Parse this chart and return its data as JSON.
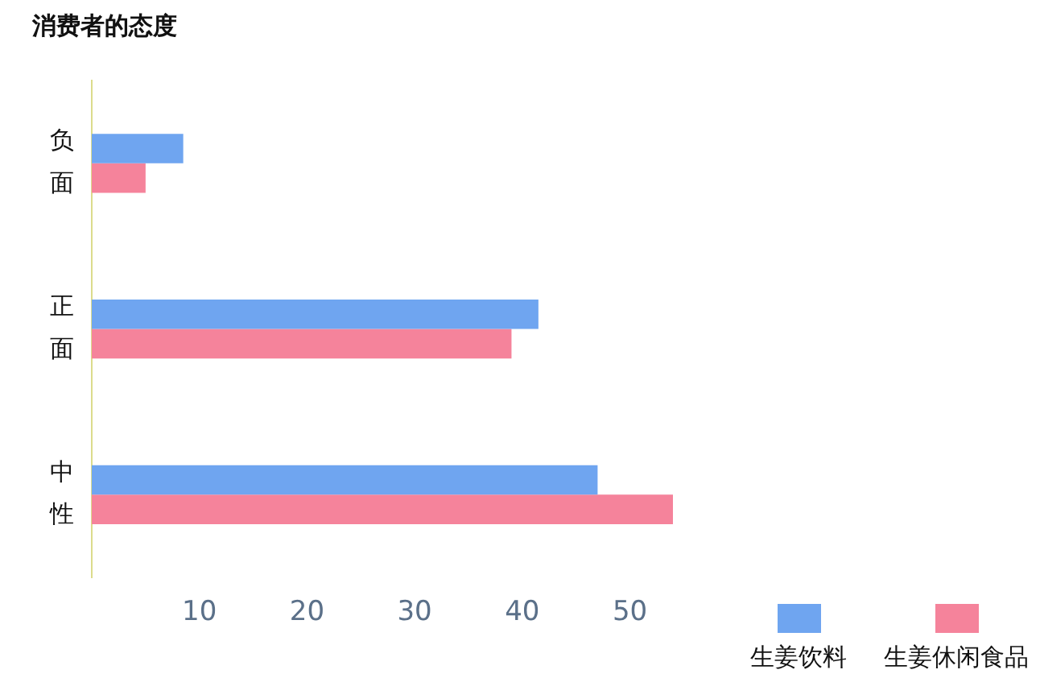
{
  "chart_data": {
    "type": "bar",
    "orientation": "horizontal",
    "title": "消费者的态度",
    "categories": [
      "负面",
      "正面",
      "中性"
    ],
    "series": [
      {
        "name": "生姜饮料",
        "color": "#6fa5f0",
        "values": [
          8.5,
          41.5,
          47
        ]
      },
      {
        "name": "生姜休闲食品",
        "color": "#f5839b",
        "values": [
          5,
          39,
          54
        ]
      }
    ],
    "xlim": [
      0,
      54
    ],
    "xticks": [
      10,
      20,
      30,
      40,
      50
    ],
    "legend": "bottom right"
  }
}
